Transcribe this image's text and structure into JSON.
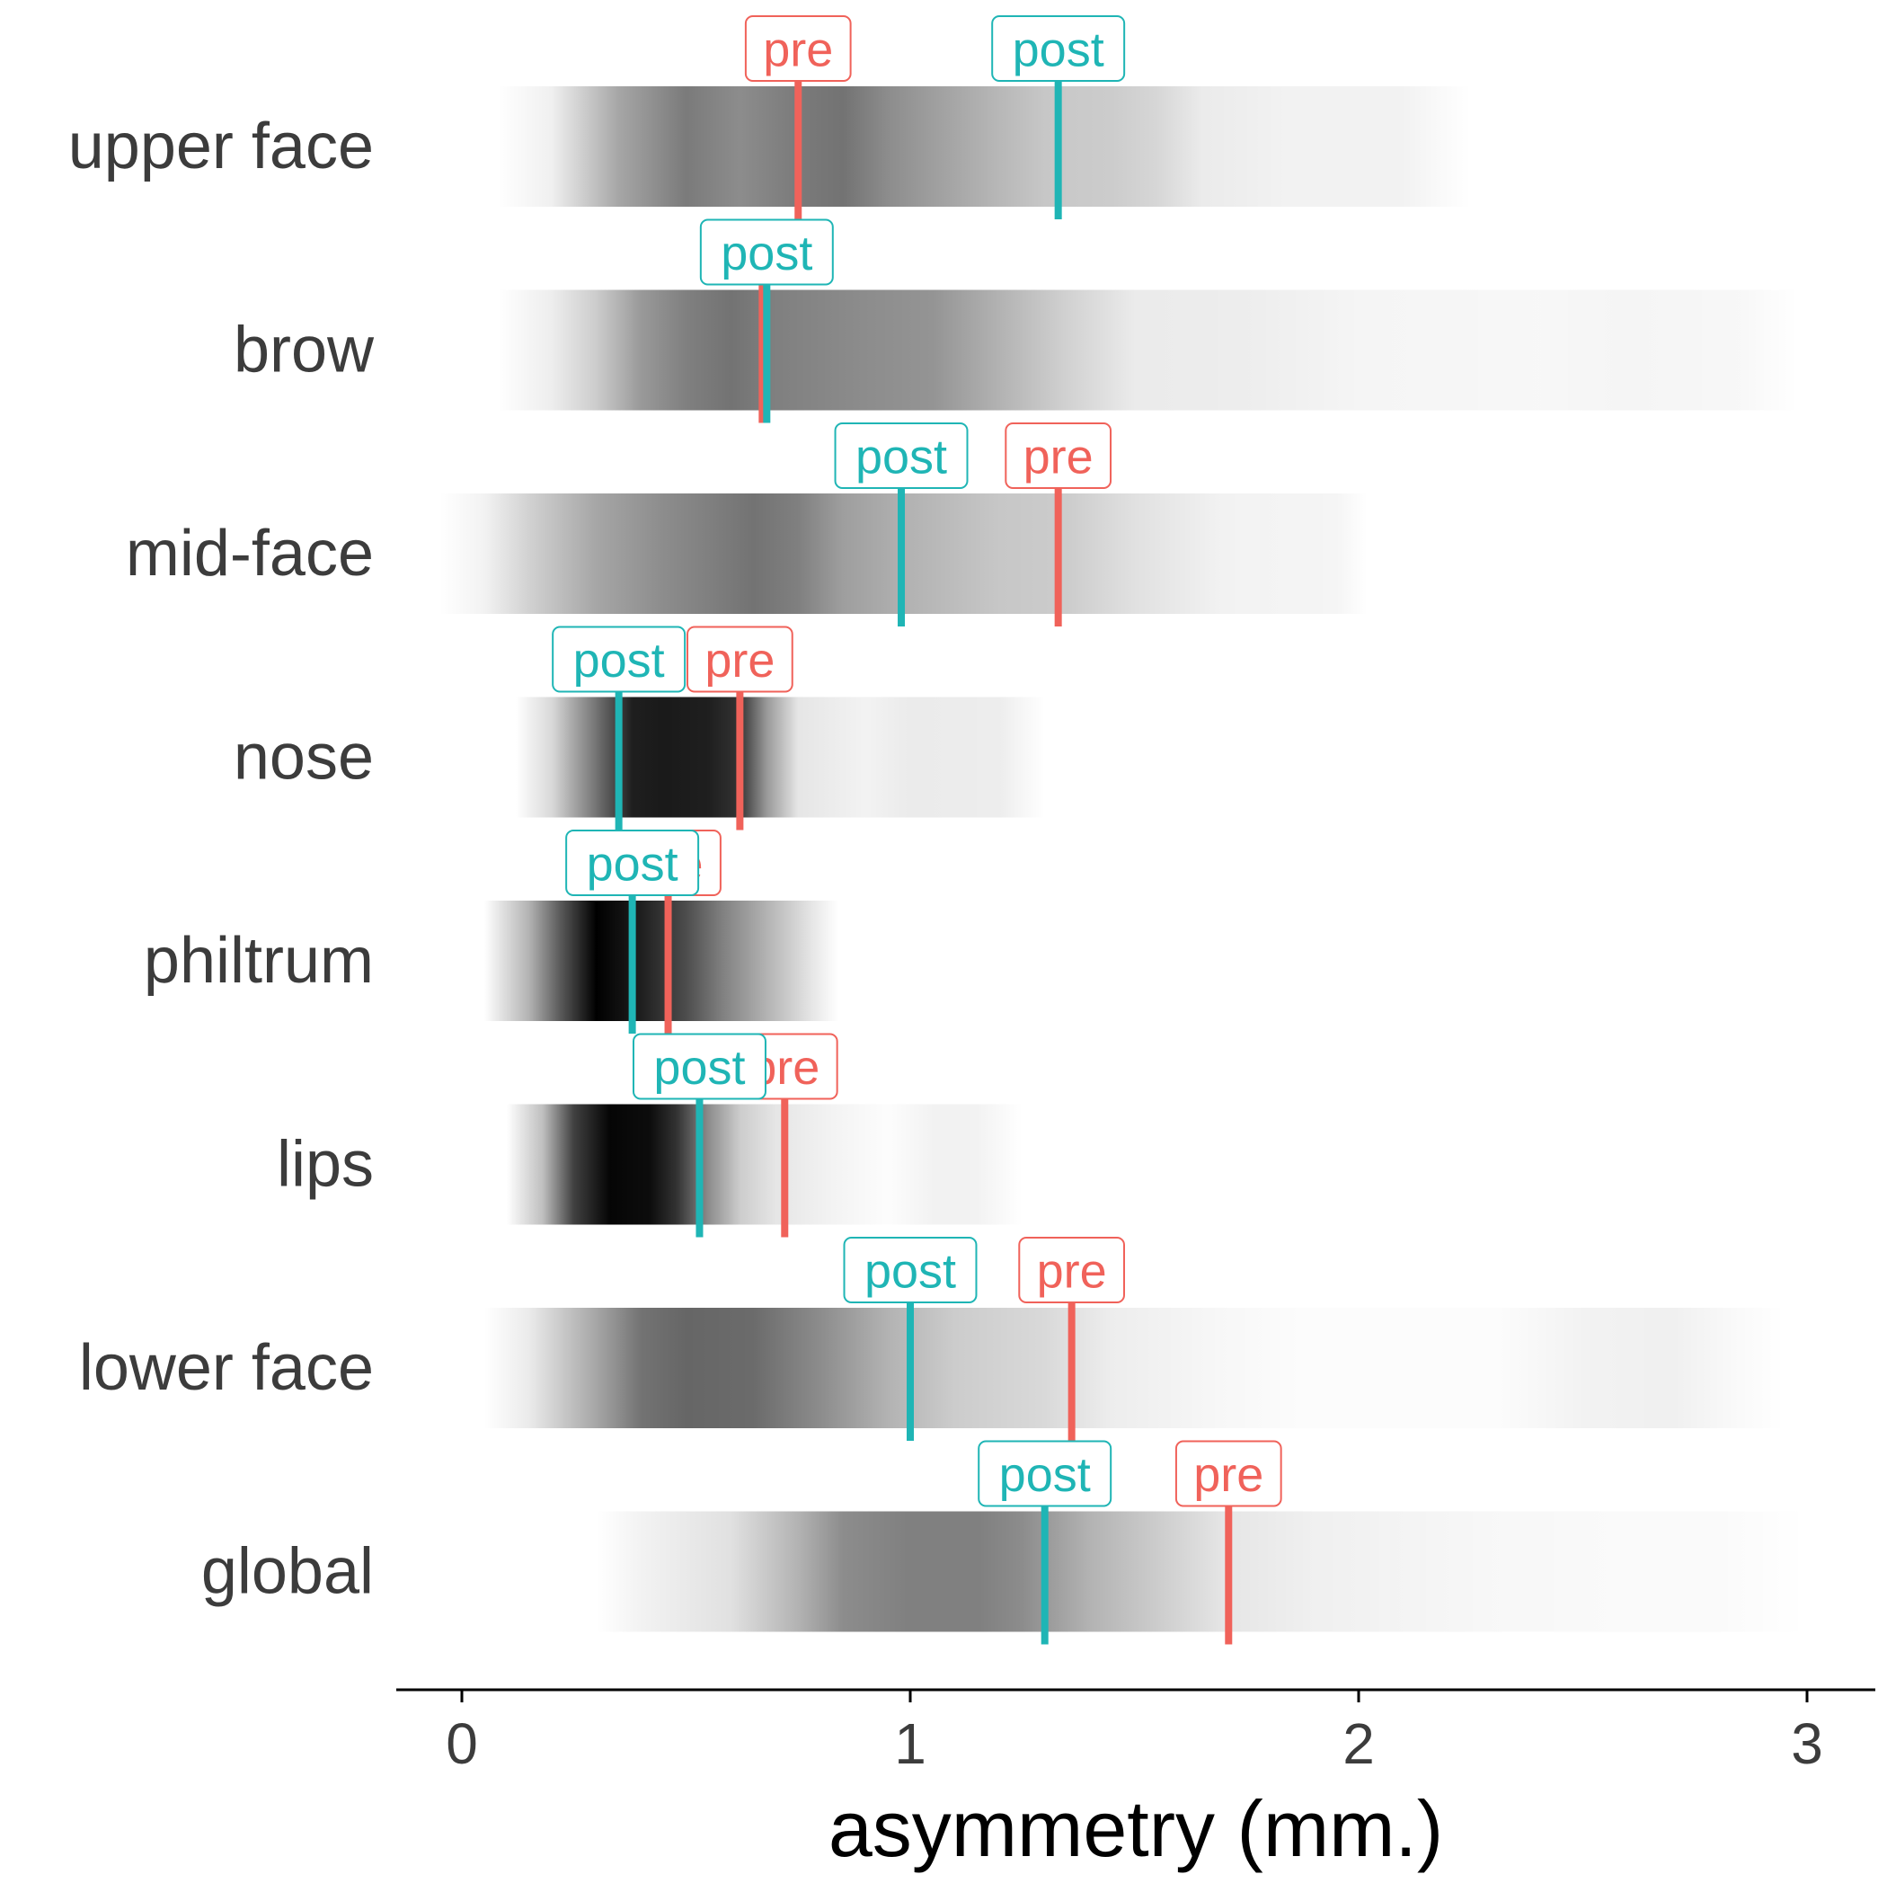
{
  "chart_data": {
    "type": "heatmap",
    "title": "",
    "xlabel": "asymmetry (mm.)",
    "ylabel": "",
    "xlim": [
      -0.15,
      3.15
    ],
    "x_ticks": [
      0,
      1,
      2,
      3
    ],
    "x_tick_labels": [
      "0",
      "1",
      "2",
      "3"
    ],
    "grid": false,
    "legend": "none",
    "categories": [
      "upper face",
      "brow",
      "mid-face",
      "nose",
      "philtrum",
      "lips",
      "lower face",
      "global"
    ],
    "marker_labels": {
      "pre": "pre",
      "post": "post"
    },
    "colors": {
      "pre": "#f0625a",
      "post": "#1fb5b5",
      "axis": "#000000",
      "text": "#3c3c3c",
      "density": "#000000"
    },
    "series": [
      {
        "name": "upper face",
        "pre": 0.75,
        "post": 1.33,
        "density": [
          [
            0.08,
            0
          ],
          [
            0.2,
            0.06
          ],
          [
            0.35,
            0.35
          ],
          [
            0.5,
            0.52
          ],
          [
            0.62,
            0.45
          ],
          [
            0.75,
            0.52
          ],
          [
            0.85,
            0.55
          ],
          [
            0.95,
            0.45
          ],
          [
            1.05,
            0.38
          ],
          [
            1.2,
            0.28
          ],
          [
            1.3,
            0.22
          ],
          [
            1.45,
            0.2
          ],
          [
            1.55,
            0.16
          ],
          [
            1.65,
            0.08
          ],
          [
            1.85,
            0.05
          ],
          [
            2.1,
            0.05
          ],
          [
            2.25,
            0
          ]
        ]
      },
      {
        "name": "brow",
        "pre": 0.67,
        "post": 0.68,
        "density": [
          [
            0.08,
            0
          ],
          [
            0.2,
            0.07
          ],
          [
            0.3,
            0.2
          ],
          [
            0.4,
            0.4
          ],
          [
            0.5,
            0.5
          ],
          [
            0.6,
            0.55
          ],
          [
            0.7,
            0.5
          ],
          [
            0.9,
            0.45
          ],
          [
            1.05,
            0.42
          ],
          [
            1.2,
            0.3
          ],
          [
            1.35,
            0.18
          ],
          [
            1.5,
            0.08
          ],
          [
            1.75,
            0.07
          ],
          [
            2.0,
            0.04
          ],
          [
            2.4,
            0.03
          ],
          [
            2.6,
            0.04
          ],
          [
            2.85,
            0.03
          ],
          [
            2.98,
            0
          ]
        ]
      },
      {
        "name": "mid-face",
        "pre": 1.33,
        "post": 0.98,
        "density": [
          [
            -0.05,
            0
          ],
          [
            0.05,
            0.05
          ],
          [
            0.15,
            0.18
          ],
          [
            0.3,
            0.35
          ],
          [
            0.45,
            0.45
          ],
          [
            0.55,
            0.5
          ],
          [
            0.65,
            0.55
          ],
          [
            0.75,
            0.5
          ],
          [
            0.85,
            0.38
          ],
          [
            1.0,
            0.3
          ],
          [
            1.2,
            0.22
          ],
          [
            1.35,
            0.2
          ],
          [
            1.5,
            0.12
          ],
          [
            1.7,
            0.05
          ],
          [
            1.95,
            0.04
          ],
          [
            2.02,
            0
          ]
        ]
      },
      {
        "name": "nose",
        "pre": 0.62,
        "post": 0.35,
        "density": [
          [
            0.12,
            0
          ],
          [
            0.2,
            0.15
          ],
          [
            0.3,
            0.55
          ],
          [
            0.38,
            0.88
          ],
          [
            0.45,
            0.9
          ],
          [
            0.55,
            0.88
          ],
          [
            0.62,
            0.8
          ],
          [
            0.68,
            0.4
          ],
          [
            0.75,
            0.1
          ],
          [
            0.9,
            0.05
          ],
          [
            1.0,
            0.08
          ],
          [
            1.2,
            0.07
          ],
          [
            1.3,
            0
          ]
        ]
      },
      {
        "name": "philtrum",
        "pre": 0.46,
        "post": 0.38,
        "density": [
          [
            0.05,
            0
          ],
          [
            0.15,
            0.3
          ],
          [
            0.22,
            0.65
          ],
          [
            0.3,
            1.0
          ],
          [
            0.4,
            0.88
          ],
          [
            0.5,
            0.7
          ],
          [
            0.58,
            0.5
          ],
          [
            0.68,
            0.3
          ],
          [
            0.78,
            0.1
          ],
          [
            0.84,
            0
          ]
        ]
      },
      {
        "name": "lips",
        "pre": 0.72,
        "post": 0.53,
        "density": [
          [
            0.1,
            0
          ],
          [
            0.18,
            0.25
          ],
          [
            0.25,
            0.75
          ],
          [
            0.33,
            0.98
          ],
          [
            0.42,
            0.95
          ],
          [
            0.48,
            0.8
          ],
          [
            0.55,
            0.45
          ],
          [
            0.62,
            0.2
          ],
          [
            0.7,
            0.1
          ],
          [
            0.82,
            0.05
          ],
          [
            0.95,
            0.01
          ],
          [
            1.05,
            0.05
          ],
          [
            1.15,
            0.05
          ],
          [
            1.25,
            0
          ]
        ]
      },
      {
        "name": "lower face",
        "pre": 1.36,
        "post": 1.0,
        "density": [
          [
            0.05,
            0
          ],
          [
            0.15,
            0.08
          ],
          [
            0.3,
            0.35
          ],
          [
            0.4,
            0.55
          ],
          [
            0.5,
            0.6
          ],
          [
            0.65,
            0.58
          ],
          [
            0.8,
            0.45
          ],
          [
            0.95,
            0.3
          ],
          [
            1.1,
            0.2
          ],
          [
            1.3,
            0.15
          ],
          [
            1.45,
            0.07
          ],
          [
            1.7,
            0.03
          ],
          [
            1.9,
            0.01
          ],
          [
            2.3,
            0.01
          ],
          [
            2.5,
            0.05
          ],
          [
            2.7,
            0.06
          ],
          [
            2.85,
            0.02
          ],
          [
            2.95,
            0
          ]
        ]
      },
      {
        "name": "global",
        "pre": 1.71,
        "post": 1.3,
        "density": [
          [
            0.3,
            0
          ],
          [
            0.4,
            0.05
          ],
          [
            0.6,
            0.12
          ],
          [
            0.75,
            0.3
          ],
          [
            0.85,
            0.45
          ],
          [
            1.0,
            0.5
          ],
          [
            1.15,
            0.5
          ],
          [
            1.25,
            0.45
          ],
          [
            1.4,
            0.3
          ],
          [
            1.55,
            0.2
          ],
          [
            1.7,
            0.1
          ],
          [
            1.9,
            0.06
          ],
          [
            2.3,
            0.03
          ],
          [
            2.6,
            0.02
          ],
          [
            2.8,
            0.02
          ],
          [
            3.0,
            0
          ]
        ]
      }
    ]
  }
}
